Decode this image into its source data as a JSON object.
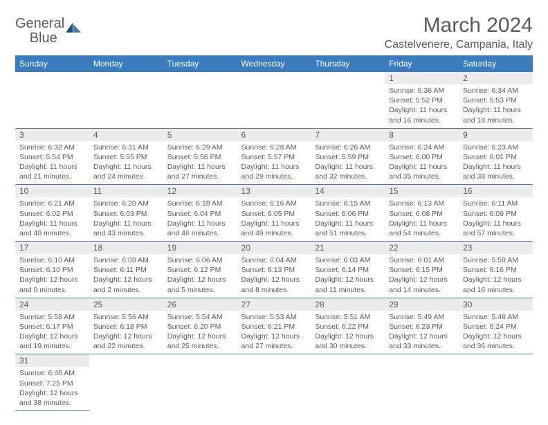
{
  "brand": {
    "name1": "General",
    "name2": "Blue"
  },
  "title": "March 2024",
  "location": "Castelvenere, Campania, Italy",
  "colors": {
    "accent": "#3b7bbf",
    "text": "#5a5a5a",
    "daynum_bg": "#ececec",
    "background": "#ffffff"
  },
  "weekdays": [
    "Sunday",
    "Monday",
    "Tuesday",
    "Wednesday",
    "Thursday",
    "Friday",
    "Saturday"
  ],
  "calendar": {
    "type": "table",
    "columns": 7,
    "rows": 6,
    "first_weekday_index": 5,
    "days_in_month": 31,
    "font_size_cell": 10.5,
    "font_size_daynum": 12,
    "font_size_header": 12
  },
  "days": [
    {
      "n": 1,
      "sunrise": "6:36 AM",
      "sunset": "5:52 PM",
      "daylight": "11 hours and 16 minutes."
    },
    {
      "n": 2,
      "sunrise": "6:34 AM",
      "sunset": "5:53 PM",
      "daylight": "11 hours and 18 minutes."
    },
    {
      "n": 3,
      "sunrise": "6:32 AM",
      "sunset": "5:54 PM",
      "daylight": "11 hours and 21 minutes."
    },
    {
      "n": 4,
      "sunrise": "6:31 AM",
      "sunset": "5:55 PM",
      "daylight": "11 hours and 24 minutes."
    },
    {
      "n": 5,
      "sunrise": "6:29 AM",
      "sunset": "5:56 PM",
      "daylight": "11 hours and 27 minutes."
    },
    {
      "n": 6,
      "sunrise": "6:28 AM",
      "sunset": "5:57 PM",
      "daylight": "11 hours and 29 minutes."
    },
    {
      "n": 7,
      "sunrise": "6:26 AM",
      "sunset": "5:59 PM",
      "daylight": "11 hours and 32 minutes."
    },
    {
      "n": 8,
      "sunrise": "6:24 AM",
      "sunset": "6:00 PM",
      "daylight": "11 hours and 35 minutes."
    },
    {
      "n": 9,
      "sunrise": "6:23 AM",
      "sunset": "6:01 PM",
      "daylight": "11 hours and 38 minutes."
    },
    {
      "n": 10,
      "sunrise": "6:21 AM",
      "sunset": "6:02 PM",
      "daylight": "11 hours and 40 minutes."
    },
    {
      "n": 11,
      "sunrise": "6:20 AM",
      "sunset": "6:03 PM",
      "daylight": "11 hours and 43 minutes."
    },
    {
      "n": 12,
      "sunrise": "6:18 AM",
      "sunset": "6:04 PM",
      "daylight": "11 hours and 46 minutes."
    },
    {
      "n": 13,
      "sunrise": "6:16 AM",
      "sunset": "6:05 PM",
      "daylight": "11 hours and 49 minutes."
    },
    {
      "n": 14,
      "sunrise": "6:15 AM",
      "sunset": "6:06 PM",
      "daylight": "11 hours and 51 minutes."
    },
    {
      "n": 15,
      "sunrise": "6:13 AM",
      "sunset": "6:08 PM",
      "daylight": "11 hours and 54 minutes."
    },
    {
      "n": 16,
      "sunrise": "6:11 AM",
      "sunset": "6:09 PM",
      "daylight": "11 hours and 57 minutes."
    },
    {
      "n": 17,
      "sunrise": "6:10 AM",
      "sunset": "6:10 PM",
      "daylight": "12 hours and 0 minutes."
    },
    {
      "n": 18,
      "sunrise": "6:08 AM",
      "sunset": "6:11 PM",
      "daylight": "12 hours and 2 minutes."
    },
    {
      "n": 19,
      "sunrise": "6:06 AM",
      "sunset": "6:12 PM",
      "daylight": "12 hours and 5 minutes."
    },
    {
      "n": 20,
      "sunrise": "6:04 AM",
      "sunset": "6:13 PM",
      "daylight": "12 hours and 8 minutes."
    },
    {
      "n": 21,
      "sunrise": "6:03 AM",
      "sunset": "6:14 PM",
      "daylight": "12 hours and 11 minutes."
    },
    {
      "n": 22,
      "sunrise": "6:01 AM",
      "sunset": "6:15 PM",
      "daylight": "12 hours and 14 minutes."
    },
    {
      "n": 23,
      "sunrise": "5:59 AM",
      "sunset": "6:16 PM",
      "daylight": "12 hours and 16 minutes."
    },
    {
      "n": 24,
      "sunrise": "5:58 AM",
      "sunset": "6:17 PM",
      "daylight": "12 hours and 19 minutes."
    },
    {
      "n": 25,
      "sunrise": "5:56 AM",
      "sunset": "6:18 PM",
      "daylight": "12 hours and 22 minutes."
    },
    {
      "n": 26,
      "sunrise": "5:54 AM",
      "sunset": "6:20 PM",
      "daylight": "12 hours and 25 minutes."
    },
    {
      "n": 27,
      "sunrise": "5:53 AM",
      "sunset": "6:21 PM",
      "daylight": "12 hours and 27 minutes."
    },
    {
      "n": 28,
      "sunrise": "5:51 AM",
      "sunset": "6:22 PM",
      "daylight": "12 hours and 30 minutes."
    },
    {
      "n": 29,
      "sunrise": "5:49 AM",
      "sunset": "6:23 PM",
      "daylight": "12 hours and 33 minutes."
    },
    {
      "n": 30,
      "sunrise": "5:48 AM",
      "sunset": "6:24 PM",
      "daylight": "12 hours and 36 minutes."
    },
    {
      "n": 31,
      "sunrise": "6:46 AM",
      "sunset": "7:25 PM",
      "daylight": "12 hours and 38 minutes."
    }
  ],
  "labels": {
    "sunrise": "Sunrise:",
    "sunset": "Sunset:",
    "daylight": "Daylight:"
  }
}
